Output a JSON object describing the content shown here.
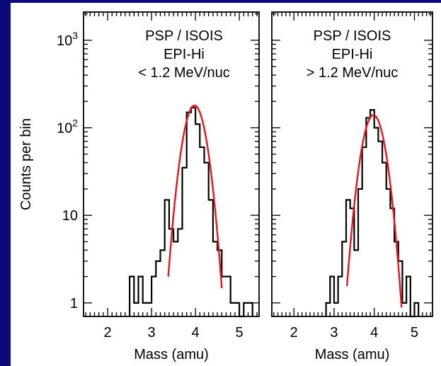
{
  "colors": {
    "background": "#0a0a78",
    "histogram": "#000000",
    "fit": "#e8141e"
  },
  "chart_data": [
    {
      "type": "histogram",
      "title_lines": [
        "PSP / ISOIS",
        "EPI-Hi",
        "< 1.2 MeV/nuc"
      ],
      "xlabel": "Mass (amu)",
      "ylabel": "Counts per bin",
      "xlim": [
        1.45,
        5.45
      ],
      "ylim": [
        0.7,
        2100
      ],
      "yscale": "log",
      "xticks": [
        2,
        3,
        4,
        5
      ],
      "yticks": [
        {
          "value": 1,
          "label": "1"
        },
        {
          "value": 10,
          "label": "10"
        },
        {
          "value": 100,
          "label": "10",
          "exp": "2"
        },
        {
          "value": 1000,
          "label": "10",
          "exp": "3"
        }
      ],
      "histogram": {
        "bins": [
          {
            "x0": 2.5,
            "x1": 2.6,
            "y": 2
          },
          {
            "x0": 2.6,
            "x1": 2.7,
            "y": 1
          },
          {
            "x0": 2.7,
            "x1": 2.8,
            "y": 2
          },
          {
            "x0": 2.8,
            "x1": 2.9,
            "y": 1
          },
          {
            "x0": 2.9,
            "x1": 3.0,
            "y": 1
          },
          {
            "x0": 3.0,
            "x1": 3.1,
            "y": 2
          },
          {
            "x0": 3.1,
            "x1": 3.2,
            "y": 3
          },
          {
            "x0": 3.2,
            "x1": 3.3,
            "y": 4
          },
          {
            "x0": 3.3,
            "x1": 3.4,
            "y": 15
          },
          {
            "x0": 3.4,
            "x1": 3.5,
            "y": 7
          },
          {
            "x0": 3.5,
            "x1": 3.6,
            "y": 5
          },
          {
            "x0": 3.6,
            "x1": 3.7,
            "y": 7
          },
          {
            "x0": 3.7,
            "x1": 3.8,
            "y": 35
          },
          {
            "x0": 3.8,
            "x1": 3.9,
            "y": 150
          },
          {
            "x0": 3.9,
            "x1": 4.0,
            "y": 170
          },
          {
            "x0": 4.0,
            "x1": 4.1,
            "y": 110
          },
          {
            "x0": 4.1,
            "x1": 4.2,
            "y": 60
          },
          {
            "x0": 4.2,
            "x1": 4.3,
            "y": 40
          },
          {
            "x0": 4.3,
            "x1": 4.4,
            "y": 15
          },
          {
            "x0": 4.4,
            "x1": 4.5,
            "y": 5
          },
          {
            "x0": 4.5,
            "x1": 4.6,
            "y": 4
          },
          {
            "x0": 4.6,
            "x1": 4.7,
            "y": 2
          },
          {
            "x0": 4.7,
            "x1": 4.8,
            "y": 2
          },
          {
            "x0": 4.8,
            "x1": 4.9,
            "y": 1
          },
          {
            "x0": 4.9,
            "x1": 5.0,
            "y": 1
          },
          {
            "x0": 5.0,
            "x1": 5.1,
            "y": 0
          },
          {
            "x0": 5.1,
            "x1": 5.2,
            "y": 1
          },
          {
            "x0": 5.2,
            "x1": 5.3,
            "y": 1
          }
        ]
      },
      "fit": {
        "type": "gaussian",
        "amplitude": 180,
        "mean": 3.98,
        "sigma": 0.2,
        "x_range": [
          3.38,
          4.6
        ]
      }
    },
    {
      "type": "histogram",
      "title_lines": [
        "PSP / ISOIS",
        "EPI-Hi",
        "> 1.2 MeV/nuc"
      ],
      "xlabel": "Mass (amu)",
      "ylabel": "",
      "xlim": [
        1.45,
        5.45
      ],
      "ylim": [
        0.7,
        2100
      ],
      "yscale": "log",
      "xticks": [
        2,
        3,
        4,
        5
      ],
      "yticks": [],
      "histogram": {
        "bins": [
          {
            "x0": 2.8,
            "x1": 2.9,
            "y": 1
          },
          {
            "x0": 2.9,
            "x1": 3.0,
            "y": 2
          },
          {
            "x0": 3.0,
            "x1": 3.1,
            "y": 1
          },
          {
            "x0": 3.1,
            "x1": 3.2,
            "y": 2
          },
          {
            "x0": 3.2,
            "x1": 3.3,
            "y": 5
          },
          {
            "x0": 3.3,
            "x1": 3.4,
            "y": 15
          },
          {
            "x0": 3.4,
            "x1": 3.5,
            "y": 12
          },
          {
            "x0": 3.5,
            "x1": 3.6,
            "y": 4
          },
          {
            "x0": 3.6,
            "x1": 3.7,
            "y": 20
          },
          {
            "x0": 3.7,
            "x1": 3.8,
            "y": 60
          },
          {
            "x0": 3.8,
            "x1": 3.9,
            "y": 130
          },
          {
            "x0": 3.9,
            "x1": 4.0,
            "y": 160
          },
          {
            "x0": 4.0,
            "x1": 4.1,
            "y": 100
          },
          {
            "x0": 4.1,
            "x1": 4.2,
            "y": 70
          },
          {
            "x0": 4.2,
            "x1": 4.3,
            "y": 40
          },
          {
            "x0": 4.3,
            "x1": 4.4,
            "y": 20
          },
          {
            "x0": 4.4,
            "x1": 4.5,
            "y": 12
          },
          {
            "x0": 4.5,
            "x1": 4.6,
            "y": 5
          },
          {
            "x0": 4.6,
            "x1": 4.7,
            "y": 3
          },
          {
            "x0": 4.7,
            "x1": 4.8,
            "y": 1
          },
          {
            "x0": 4.8,
            "x1": 4.9,
            "y": 2
          },
          {
            "x0": 4.9,
            "x1": 5.0,
            "y": 0
          },
          {
            "x0": 5.0,
            "x1": 5.1,
            "y": 1
          }
        ]
      },
      "fit": {
        "type": "gaussian",
        "amplitude": 140,
        "mean": 3.98,
        "sigma": 0.22,
        "x_range": [
          3.32,
          4.68
        ]
      }
    }
  ]
}
